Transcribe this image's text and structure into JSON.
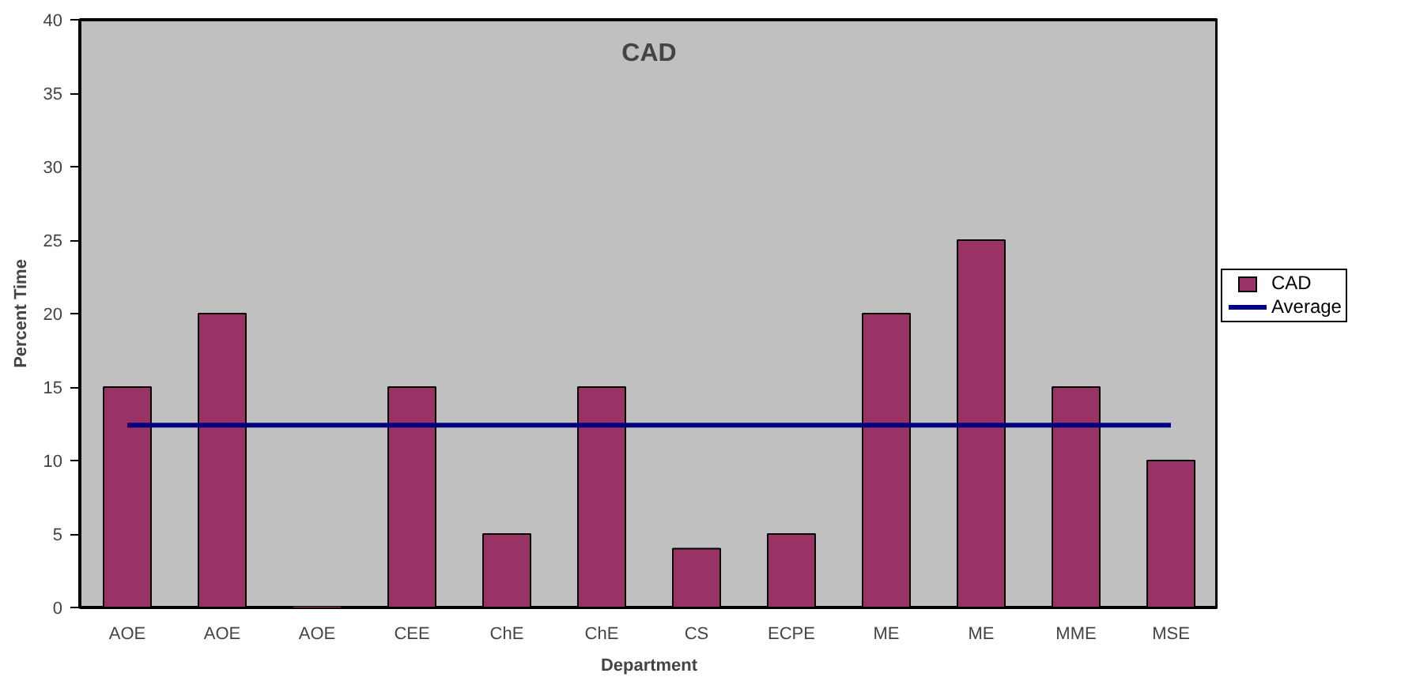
{
  "chart_data": {
    "type": "bar",
    "title": "CAD",
    "xlabel": "Department",
    "ylabel": "Percent Time",
    "categories": [
      "AOE",
      "AOE",
      "AOE",
      "CEE",
      "ChE",
      "ChE",
      "CS",
      "ECPE",
      "ME",
      "ME",
      "MME",
      "MSE"
    ],
    "series": [
      {
        "name": "CAD",
        "color": "#993366",
        "values": [
          15,
          20,
          0,
          15,
          5,
          15,
          4,
          5,
          20,
          25,
          15,
          10
        ]
      },
      {
        "name": "Average",
        "type": "line",
        "color": "#000080",
        "values": [
          12.4,
          12.4,
          12.4,
          12.4,
          12.4,
          12.4,
          12.4,
          12.4,
          12.4,
          12.4,
          12.4,
          12.4
        ]
      }
    ],
    "ylim": [
      0,
      40
    ],
    "yticks": [
      0,
      5,
      10,
      15,
      20,
      25,
      30,
      35,
      40
    ],
    "grid": false,
    "legend": "right",
    "marker": "none",
    "line_style": "solid"
  }
}
